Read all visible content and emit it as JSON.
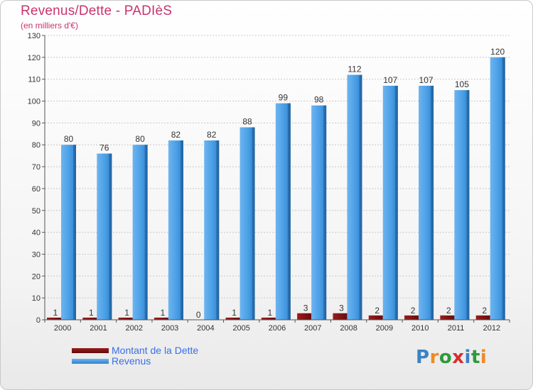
{
  "header": {
    "title": "Revenus/Dette - PADIèS",
    "subtitle": "(en milliers d'€)"
  },
  "logo": {
    "text": "Proxiti",
    "letter_colors": [
      "#3b82c4",
      "#f08a24",
      "#2e9a3a",
      "#d62e2e",
      "#3b82c4",
      "#2e9a3a",
      "#f08a24"
    ]
  },
  "chart_data": {
    "type": "bar",
    "categories": [
      "2000",
      "2001",
      "2002",
      "2003",
      "2004",
      "2005",
      "2006",
      "2007",
      "2008",
      "2009",
      "2010",
      "2011",
      "2012"
    ],
    "series": [
      {
        "name": "Montant de la Dette",
        "color": "#7a0e0e",
        "values": [
          1,
          1,
          1,
          1,
          0,
          1,
          1,
          3,
          3,
          2,
          2,
          2,
          2
        ],
        "labels": [
          "1",
          "1",
          "1",
          "1",
          "0",
          "1",
          "1",
          "3",
          "3",
          "2",
          "2",
          "2",
          "2"
        ]
      },
      {
        "name": "Revenus",
        "color": "#4a9fe6",
        "values": [
          80,
          76,
          80,
          82,
          82,
          88,
          99,
          98,
          112,
          107,
          107,
          105,
          120
        ],
        "labels": [
          "80",
          "76",
          "80",
          "82",
          "82",
          "88",
          "99",
          "98",
          "112",
          "107",
          "107",
          "105",
          "120"
        ]
      }
    ],
    "ylim": [
      0,
      130
    ],
    "yticks": [
      0,
      10,
      20,
      30,
      40,
      50,
      60,
      70,
      80,
      90,
      100,
      110,
      120,
      130
    ],
    "grid": true,
    "legend_position": "bottom-left"
  }
}
